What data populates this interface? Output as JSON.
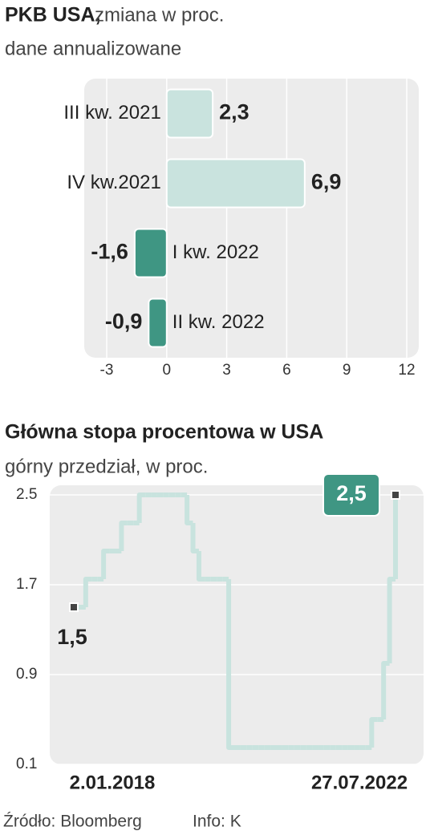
{
  "chart_data": [
    {
      "type": "hbar",
      "title": "PKB USA,",
      "subtitle": "zmiana w proc.",
      "note": "dane annualizowane",
      "categories": [
        "III kw. 2021",
        "IV kw.2021",
        "I kw. 2022",
        "II kw. 2022"
      ],
      "values": [
        2.3,
        6.9,
        -1.6,
        -0.9
      ],
      "value_labels": [
        "2,3",
        "6,9",
        "-1,6",
        "-0,9"
      ],
      "colors": [
        "#c9e3de",
        "#c9e3de",
        "#3f9683",
        "#3f9683"
      ],
      "xlim": [
        -3,
        12
      ],
      "xticks": [
        -3,
        0,
        3,
        6,
        9,
        12
      ],
      "grid": true
    },
    {
      "type": "step",
      "title": "Główna stopa procentowa w USA",
      "subtitle": "górny przedział, w proc.",
      "categories": [
        "2.01.2018",
        null,
        null,
        null,
        null,
        null,
        null,
        null,
        null,
        null,
        null,
        null,
        null,
        null,
        null,
        null,
        null,
        null,
        null,
        null,
        null,
        null,
        null,
        null,
        null,
        null,
        null,
        null,
        null,
        null,
        null,
        null,
        null,
        null,
        null,
        null,
        null,
        null,
        null,
        null,
        null,
        null,
        null,
        null,
        null,
        null,
        null,
        null,
        null,
        null,
        null,
        null,
        null,
        null,
        "27.07.2022"
      ],
      "series": [
        {
          "color": "#c8e3de",
          "values": [
            1.5,
            1.5,
            1.75,
            1.75,
            1.75,
            2.0,
            2.0,
            2.0,
            2.25,
            2.25,
            2.25,
            2.5,
            2.5,
            2.5,
            2.5,
            2.5,
            2.5,
            2.5,
            2.5,
            2.25,
            2.0,
            1.75,
            1.75,
            1.75,
            1.75,
            1.75,
            0.25,
            0.25,
            0.25,
            0.25,
            0.25,
            0.25,
            0.25,
            0.25,
            0.25,
            0.25,
            0.25,
            0.25,
            0.25,
            0.25,
            0.25,
            0.25,
            0.25,
            0.25,
            0.25,
            0.25,
            0.25,
            0.25,
            0.25,
            0.25,
            0.5,
            0.5,
            1.0,
            1.75,
            2.5
          ]
        }
      ],
      "annotations": [
        "1,5",
        "2,5"
      ],
      "annotation_color": "#3f9683",
      "ylim": [
        0.1,
        2.5
      ],
      "yticks": [
        2.5,
        1.7,
        0.9,
        0.1
      ],
      "grid": true
    }
  ],
  "source": "Źródło: Bloomberg",
  "credit": "Info: K"
}
